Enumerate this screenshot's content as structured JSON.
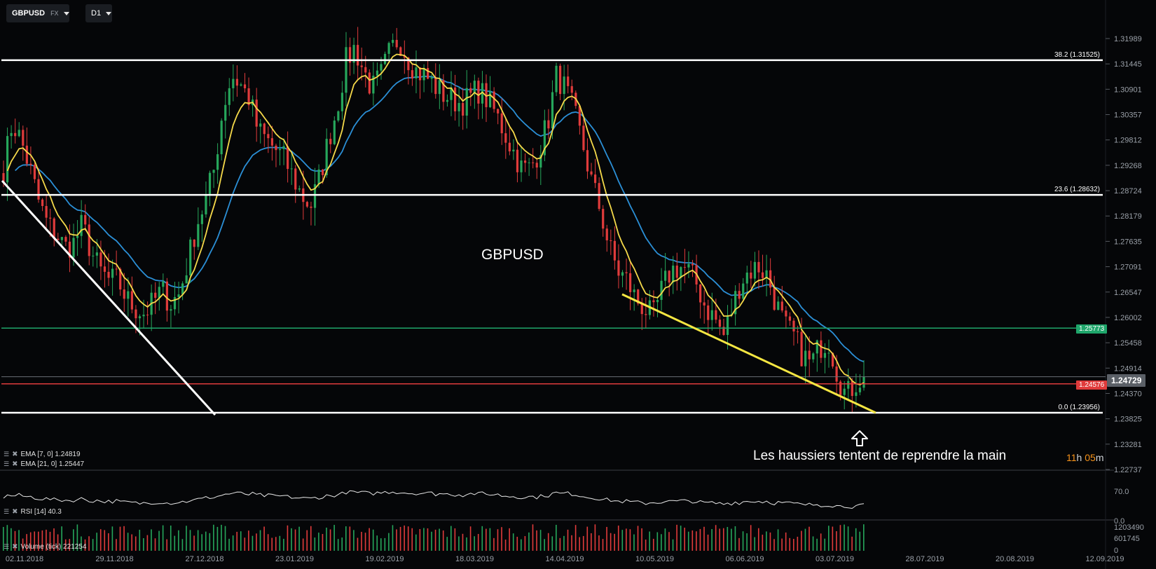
{
  "toolbar": {
    "symbol": "GBPUSD",
    "symbol_type": "FX",
    "timeframe": "D1"
  },
  "chart_watermark": "GBPUSD",
  "annotation": "Les haussiers tentent de reprendre la main",
  "countdown": {
    "hours": "11",
    "h_unit": "h",
    "minutes": "05",
    "m_unit": "m"
  },
  "indicators": {
    "ema7": "EMA [7, 0] 1.24819",
    "ema21": "EMA [21, 0] 1.25447",
    "rsi": "RSI [14] 40.3",
    "volume": "Volume (tick) 221254"
  },
  "price_badges": {
    "current": "1.24729",
    "red_line": "1.24576",
    "green_line": "1.25773"
  },
  "fib_labels": {
    "f382": "38.2 (1.31525)",
    "f236": "23.6 (1.28632)",
    "f0": "0.0 (1.23956)"
  },
  "colors": {
    "background": "#050608",
    "bull_candle": "#26a65b",
    "bear_candle": "#e03b3b",
    "ema7": "#f5d94a",
    "ema21": "#2b8fd6",
    "support_green": "#1fa66b",
    "support_red": "#e03b3b",
    "trendline_yellow": "#f5e642",
    "fib_white": "#ffffff"
  },
  "chart_data": {
    "type": "candlestick",
    "symbol": "GBPUSD",
    "timeframe": "D1",
    "y_price_ticks": [
      "1.31989",
      "1.31445",
      "1.30901",
      "1.30357",
      "1.29812",
      "1.29268",
      "1.28724",
      "1.28179",
      "1.27635",
      "1.27091",
      "1.26547",
      "1.26002",
      "1.25458",
      "1.24914",
      "1.24370",
      "1.23825",
      "1.23281",
      "1.22737"
    ],
    "x_date_ticks": [
      "02.11.2018",
      "29.11.2018",
      "27.12.2018",
      "23.01.2019",
      "19.02.2019",
      "18.03.2019",
      "14.04.2019",
      "10.05.2019",
      "06.06.2019",
      "03.07.2019",
      "28.07.2019",
      "20.08.2019",
      "12.09.2019"
    ],
    "rsi_ticks": [
      "70.0",
      "0.0"
    ],
    "volume_ticks": [
      "1203490",
      "601745",
      "0"
    ],
    "horizontal_levels": [
      {
        "label": "38.2 (1.31525)",
        "price": 1.31525,
        "color": "white"
      },
      {
        "label": "23.6 (1.28632)",
        "price": 1.28632,
        "color": "white"
      },
      {
        "price": 1.25773,
        "color": "green"
      },
      {
        "price": 1.24576,
        "color": "red"
      },
      {
        "label": "0.0 (1.23956)",
        "price": 1.23956,
        "color": "white"
      }
    ],
    "last_price": 1.24729,
    "ema7_last": 1.24819,
    "ema21_last": 1.25447,
    "rsi_last": 40.3,
    "volume_last": 221254,
    "close_path": [
      1.292,
      1.302,
      1.298,
      1.292,
      1.285,
      1.28,
      1.278,
      1.275,
      1.276,
      1.28,
      1.274,
      1.27,
      1.268,
      1.268,
      1.264,
      1.262,
      1.261,
      1.263,
      1.266,
      1.263,
      1.265,
      1.272,
      1.28,
      1.285,
      1.292,
      1.305,
      1.312,
      1.31,
      1.307,
      1.3,
      1.298,
      1.296,
      1.294,
      1.29,
      1.286,
      1.284,
      1.29,
      1.298,
      1.305,
      1.315,
      1.318,
      1.313,
      1.309,
      1.312,
      1.317,
      1.32,
      1.316,
      1.313,
      1.312,
      1.31,
      1.308,
      1.307,
      1.306,
      1.307,
      1.309,
      1.307,
      1.304,
      1.3,
      1.296,
      1.292,
      1.292,
      1.296,
      1.302,
      1.312,
      1.309,
      1.304,
      1.297,
      1.289,
      1.283,
      1.275,
      1.27,
      1.268,
      1.264,
      1.262,
      1.26,
      1.266,
      1.27,
      1.271,
      1.27,
      1.267,
      1.262,
      1.26,
      1.256,
      1.262,
      1.268,
      1.27,
      1.271,
      1.269,
      1.263,
      1.258,
      1.256,
      1.252,
      1.25,
      1.254,
      1.255,
      1.248,
      1.243,
      1.246,
      1.24729
    ]
  }
}
